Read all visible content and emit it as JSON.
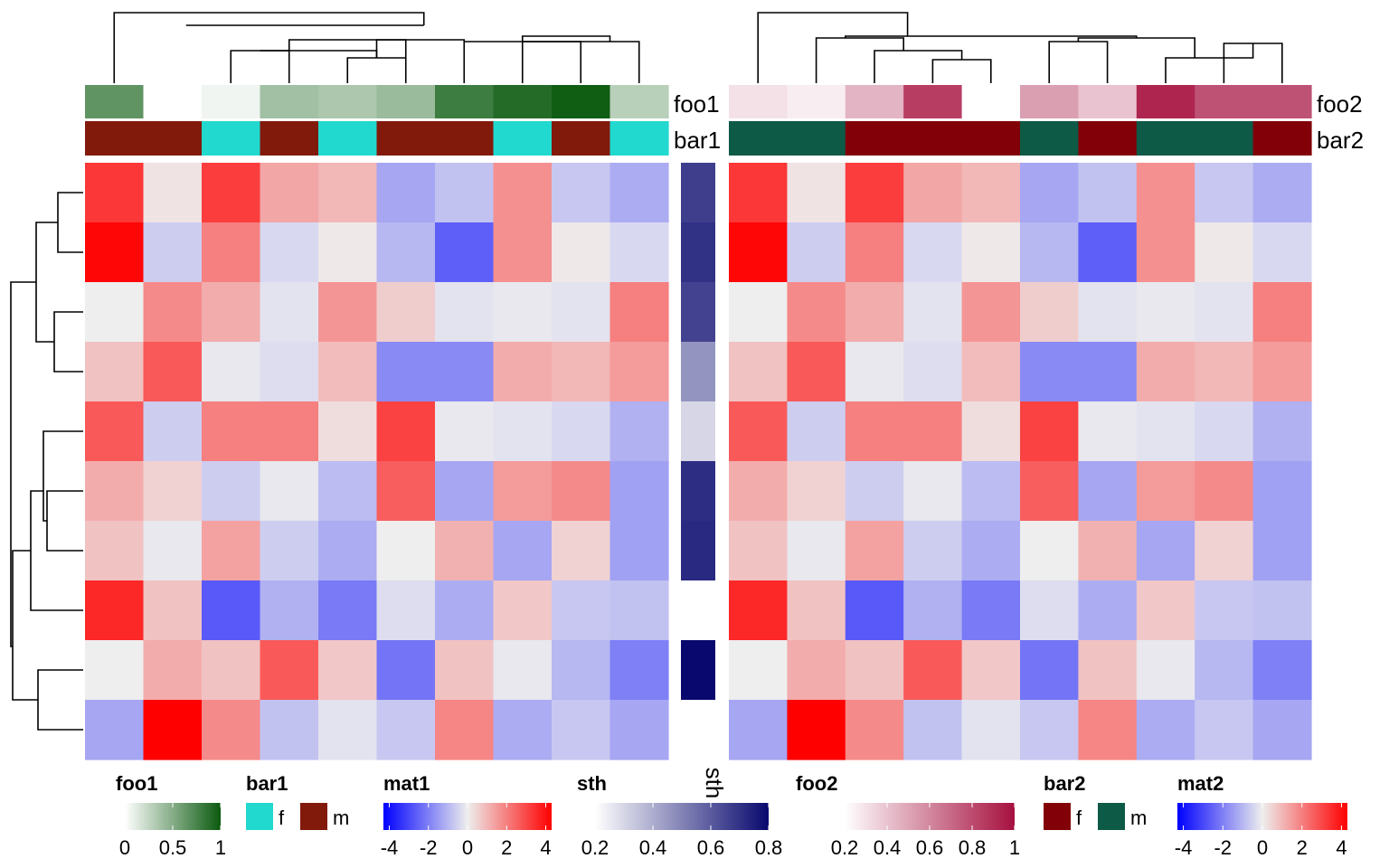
{
  "chart_data": {
    "type": "heatmap",
    "mat1": {
      "rows": 10,
      "cols": 10,
      "values": [
        [
          3.3,
          0.2,
          3.2,
          1.3,
          1.0,
          -1.3,
          -0.8,
          1.7,
          -0.7,
          -1.2
        ],
        [
          4.2,
          -0.6,
          2.0,
          -0.4,
          0.1,
          -1.0,
          -2.6,
          1.7,
          0.1,
          -0.4
        ],
        [
          0.0,
          1.8,
          1.2,
          -0.2,
          1.6,
          0.6,
          -0.2,
          -0.1,
          -0.2,
          2.0
        ],
        [
          0.8,
          2.7,
          -0.1,
          -0.3,
          0.9,
          -1.8,
          -1.8,
          1.2,
          1.0,
          1.5
        ],
        [
          2.7,
          -0.6,
          2.0,
          2.0,
          0.3,
          3.1,
          -0.1,
          -0.2,
          -0.4,
          -1.1
        ],
        [
          1.2,
          0.5,
          -0.6,
          -0.1,
          -0.9,
          2.6,
          -1.3,
          1.5,
          1.8,
          -1.4
        ],
        [
          0.8,
          -0.1,
          1.4,
          -0.6,
          -1.2,
          0.0,
          1.1,
          -1.3,
          0.5,
          -1.4
        ],
        [
          3.6,
          0.8,
          -2.7,
          -1.1,
          -2.1,
          -0.3,
          -1.2,
          0.7,
          -0.7,
          -0.8
        ],
        [
          0.0,
          1.2,
          0.8,
          2.7,
          0.7,
          -2.2,
          0.8,
          -0.1,
          -1.0,
          -2.0
        ],
        [
          -1.3,
          4.3,
          1.8,
          -0.8,
          -0.2,
          -0.7,
          1.9,
          -1.2,
          -0.7,
          -1.3
        ]
      ],
      "foo1": [
        0.65,
        0.0,
        0.06,
        0.38,
        0.34,
        0.41,
        0.79,
        0.9,
        0.98,
        0.29
      ],
      "bar1": [
        "m",
        "m",
        "f",
        "m",
        "f",
        "m",
        "m",
        "f",
        "m",
        "f"
      ]
    },
    "mat2": {
      "rows": 10,
      "cols": 10,
      "values": [
        [
          3.3,
          0.2,
          3.2,
          1.3,
          1.0,
          -1.3,
          -0.8,
          1.7,
          -0.7,
          -1.2
        ],
        [
          4.2,
          -0.6,
          2.0,
          -0.4,
          0.1,
          -1.0,
          -2.6,
          1.7,
          0.1,
          -0.4
        ],
        [
          0.0,
          1.8,
          1.2,
          -0.2,
          1.6,
          0.6,
          -0.2,
          -0.1,
          -0.2,
          2.0
        ],
        [
          0.8,
          2.7,
          -0.1,
          -0.3,
          0.9,
          -1.8,
          -1.8,
          1.2,
          1.0,
          1.5
        ],
        [
          2.7,
          -0.6,
          2.0,
          2.0,
          0.3,
          3.1,
          -0.1,
          -0.2,
          -0.4,
          -1.1
        ],
        [
          1.2,
          0.5,
          -0.6,
          -0.1,
          -0.9,
          2.6,
          -1.3,
          1.5,
          1.8,
          -1.4
        ],
        [
          0.8,
          -0.1,
          1.4,
          -0.6,
          -1.2,
          0.0,
          1.1,
          -1.3,
          0.5,
          -1.4
        ],
        [
          3.6,
          0.8,
          -2.7,
          -1.1,
          -2.1,
          -0.3,
          -1.2,
          0.7,
          -0.7,
          -0.8
        ],
        [
          0.0,
          1.2,
          0.8,
          2.7,
          0.7,
          -2.2,
          0.8,
          -0.1,
          -1.0,
          -2.0
        ],
        [
          -1.3,
          4.3,
          1.8,
          -0.8,
          -0.2,
          -0.7,
          1.9,
          -1.2,
          -0.7,
          -1.3
        ]
      ],
      "foo2": [
        0.3,
        0.26,
        0.45,
        0.85,
        0.2,
        0.52,
        0.4,
        0.93,
        0.78,
        0.78
      ],
      "bar2": [
        "m",
        "m",
        "f",
        "f",
        "f",
        "m",
        "f",
        "m",
        "m",
        "f"
      ]
    },
    "sth": [
      0.67,
      0.7,
      0.66,
      0.46,
      0.3,
      0.71,
      0.72,
      0.2,
      0.8,
      null
    ],
    "annotation_labels": {
      "foo1": "foo1",
      "bar1": "bar1",
      "foo2": "foo2",
      "bar2": "bar2",
      "sth": "sth"
    },
    "legends": [
      {
        "title": "foo1",
        "kind": "continuous",
        "colors": [
          "#ffffff",
          "#0b5a0f"
        ],
        "ticks": [
          "0",
          "0.5",
          "1"
        ],
        "tick_values": [
          0,
          0.5,
          1
        ],
        "range": [
          0,
          1
        ]
      },
      {
        "title": "bar1",
        "kind": "discrete",
        "items": [
          {
            "label": "f",
            "color": "#21d9cf"
          },
          {
            "label": "m",
            "color": "#821a0c"
          }
        ]
      },
      {
        "title": "mat1",
        "kind": "continuous",
        "colors": [
          "#0000ff",
          "#eeeeee",
          "#ff0000"
        ],
        "ticks": [
          "-4",
          "-2",
          "0",
          "2",
          "4"
        ],
        "tick_values": [
          -4,
          -2,
          0,
          2,
          4
        ],
        "range": [
          -4.3,
          4.3
        ]
      },
      {
        "title": "sth",
        "kind": "continuous",
        "colors": [
          "#ffffff",
          "#08086e"
        ],
        "ticks": [
          "0.2",
          "0.4",
          "0.6",
          "0.8"
        ],
        "tick_values": [
          0.2,
          0.4,
          0.6,
          0.8
        ],
        "range": [
          0.2,
          0.8
        ]
      },
      {
        "title": "foo2",
        "kind": "continuous",
        "colors": [
          "#ffffff",
          "#a6103f"
        ],
        "ticks": [
          "0.2",
          "0.4",
          "0.6",
          "0.8",
          "1"
        ],
        "tick_values": [
          0.2,
          0.4,
          0.6,
          0.8,
          1.0
        ],
        "range": [
          0.2,
          1.0
        ]
      },
      {
        "title": "bar2",
        "kind": "discrete",
        "items": [
          {
            "label": "f",
            "color": "#820008"
          },
          {
            "label": "m",
            "color": "#0d5a47"
          }
        ]
      },
      {
        "title": "mat2",
        "kind": "continuous",
        "colors": [
          "#0000ff",
          "#eeeeee",
          "#ff0000"
        ],
        "ticks": [
          "-4",
          "-2",
          "0",
          "2",
          "4"
        ],
        "tick_values": [
          -4,
          -2,
          0,
          2,
          4
        ],
        "range": [
          -4.3,
          4.3
        ]
      }
    ]
  }
}
